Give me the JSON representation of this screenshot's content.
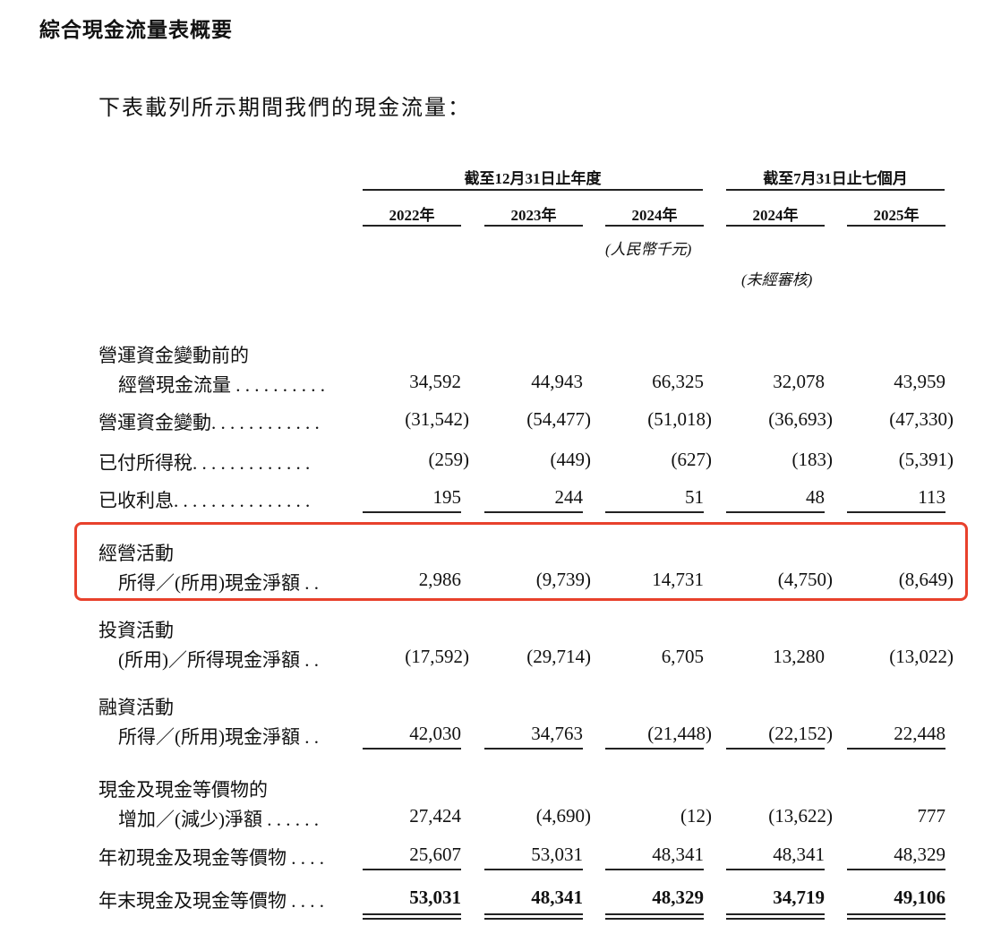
{
  "title": "綜合現金流量表概要",
  "intro": "下表載列所示期間我們的現金流量：",
  "header": {
    "group1": "截至12月31日止年度",
    "group2": "截至7月31日止七個月",
    "years": [
      "2022年",
      "2023年",
      "2024年",
      "2024年",
      "2025年"
    ],
    "currency_note": "(人民幣千元)",
    "unaudited_note": "(未經審核)"
  },
  "highlight_color": "#e8412c",
  "rows": [
    {
      "label1": "營運資金變動前的",
      "label2": "經營現金流量 . . . . . . . . . .",
      "values": [
        "34,592",
        "44,943",
        "66,325",
        "32,078",
        "43,959"
      ]
    },
    {
      "label2": "營運資金變動. . . . . . . . . . . .",
      "values": [
        "(31,542)",
        "(54,477)",
        "(51,018)",
        "(36,693)",
        "(47,330)"
      ]
    },
    {
      "label2": "已付所得稅. . . . . . . . . . . . .",
      "values": [
        "(259)",
        "(449)",
        "(627)",
        "(183)",
        "(5,391)"
      ]
    },
    {
      "label2": "已收利息. . . . . . . . . . . . . . .",
      "values": [
        "195",
        "244",
        "51",
        "48",
        "113"
      ]
    },
    {
      "label1": "經營活動",
      "label2": "所得／(所用)現金淨額 . .",
      "values": [
        "2,986",
        "(9,739)",
        "14,731",
        "(4,750)",
        "(8,649)"
      ]
    },
    {
      "label1": "投資活動",
      "label2": "(所用)／所得現金淨額 . .",
      "values": [
        "(17,592)",
        "(29,714)",
        "6,705",
        "13,280",
        "(13,022)"
      ]
    },
    {
      "label1": "融資活動",
      "label2": "所得／(所用)現金淨額 . .",
      "values": [
        "42,030",
        "34,763",
        "(21,448)",
        "(22,152)",
        "22,448"
      ]
    },
    {
      "label1": "現金及現金等價物的",
      "label2": "增加／(減少)淨額 . . . . . .",
      "values": [
        "27,424",
        "(4,690)",
        "(12)",
        "(13,622)",
        "777"
      ]
    },
    {
      "label2": "年初現金及現金等價物 . . . .",
      "values": [
        "25,607",
        "53,031",
        "48,341",
        "48,341",
        "48,329"
      ]
    },
    {
      "label2": "年末現金及現金等價物 . . . .",
      "values": [
        "53,031",
        "48,341",
        "48,329",
        "34,719",
        "49,106"
      ]
    }
  ]
}
